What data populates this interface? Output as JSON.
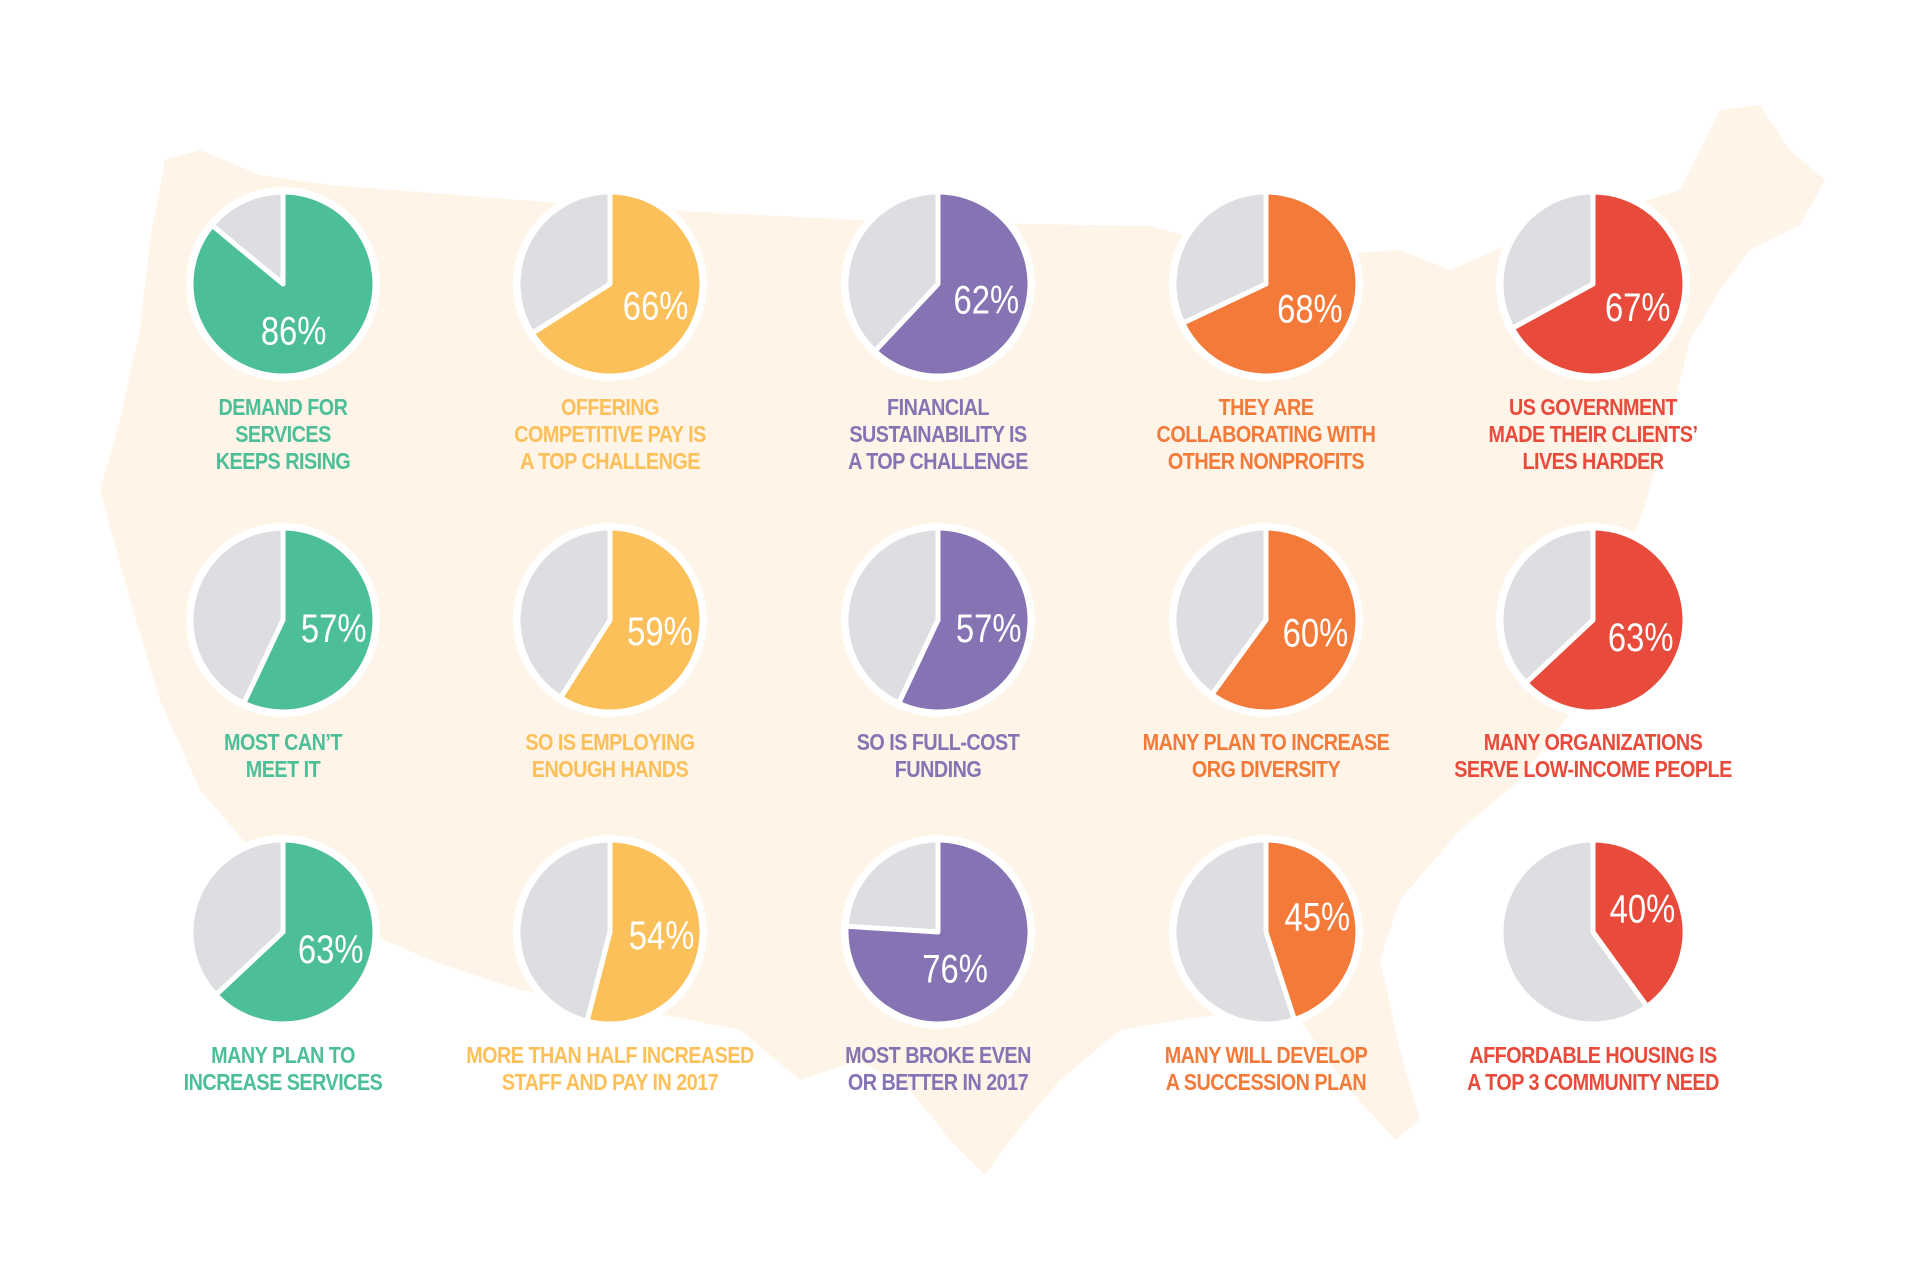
{
  "colors": {
    "green": "#4dbf98",
    "yellow": "#fcc05a",
    "purple": "#8673b3",
    "orange": "#f47a3a",
    "red": "#e84b3c",
    "remainder": "#dcdee1",
    "map": "#fef4e8"
  },
  "chart_data": [
    {
      "type": "pie",
      "value": 86,
      "label": "86%",
      "caption": [
        "DEMAND FOR",
        "SERVICES",
        "KEEPS RISING"
      ],
      "color": "green"
    },
    {
      "type": "pie",
      "value": 66,
      "label": "66%",
      "caption": [
        "OFFERING",
        "COMPETITIVE PAY IS",
        "A TOP CHALLENGE"
      ],
      "color": "yellow"
    },
    {
      "type": "pie",
      "value": 62,
      "label": "62%",
      "caption": [
        "FINANCIAL",
        "SUSTAINABILITY IS",
        "A TOP CHALLENGE"
      ],
      "color": "purple"
    },
    {
      "type": "pie",
      "value": 68,
      "label": "68%",
      "caption": [
        "THEY ARE",
        "COLLABORATING WITH",
        "OTHER NONPROFITS"
      ],
      "color": "orange"
    },
    {
      "type": "pie",
      "value": 67,
      "label": "67%",
      "caption": [
        "US GOVERNMENT",
        "MADE THEIR CLIENTS’",
        "LIVES HARDER"
      ],
      "color": "red"
    },
    {
      "type": "pie",
      "value": 57,
      "label": "57%",
      "caption": [
        "MOST CAN’T",
        "MEET IT"
      ],
      "color": "green"
    },
    {
      "type": "pie",
      "value": 59,
      "label": "59%",
      "caption": [
        "SO IS EMPLOYING",
        "ENOUGH HANDS"
      ],
      "color": "yellow"
    },
    {
      "type": "pie",
      "value": 57,
      "label": "57%",
      "caption": [
        "SO IS FULL-COST",
        "FUNDING"
      ],
      "color": "purple"
    },
    {
      "type": "pie",
      "value": 60,
      "label": "60%",
      "caption": [
        "MANY PLAN TO INCREASE",
        "ORG DIVERSITY"
      ],
      "color": "orange"
    },
    {
      "type": "pie",
      "value": 63,
      "label": "63%",
      "caption": [
        "MANY ORGANIZATIONS",
        "SERVE LOW-INCOME PEOPLE"
      ],
      "color": "red"
    },
    {
      "type": "pie",
      "value": 63,
      "label": "63%",
      "caption": [
        "MANY PLAN TO",
        "INCREASE SERVICES"
      ],
      "color": "green"
    },
    {
      "type": "pie",
      "value": 54,
      "label": "54%",
      "caption": [
        "MORE THAN HALF INCREASED",
        "STAFF AND PAY IN 2017"
      ],
      "color": "yellow"
    },
    {
      "type": "pie",
      "value": 76,
      "label": "76%",
      "caption": [
        "MOST BROKE EVEN",
        "OR BETTER IN 2017"
      ],
      "color": "purple"
    },
    {
      "type": "pie",
      "value": 45,
      "label": "45%",
      "caption": [
        "MANY WILL DEVELOP",
        "A SUCCESSION PLAN"
      ],
      "color": "orange"
    },
    {
      "type": "pie",
      "value": 40,
      "label": "40%",
      "caption": [
        "AFFORDABLE HOUSING IS",
        "A TOP 3 COMMUNITY NEED"
      ],
      "color": "red"
    }
  ]
}
